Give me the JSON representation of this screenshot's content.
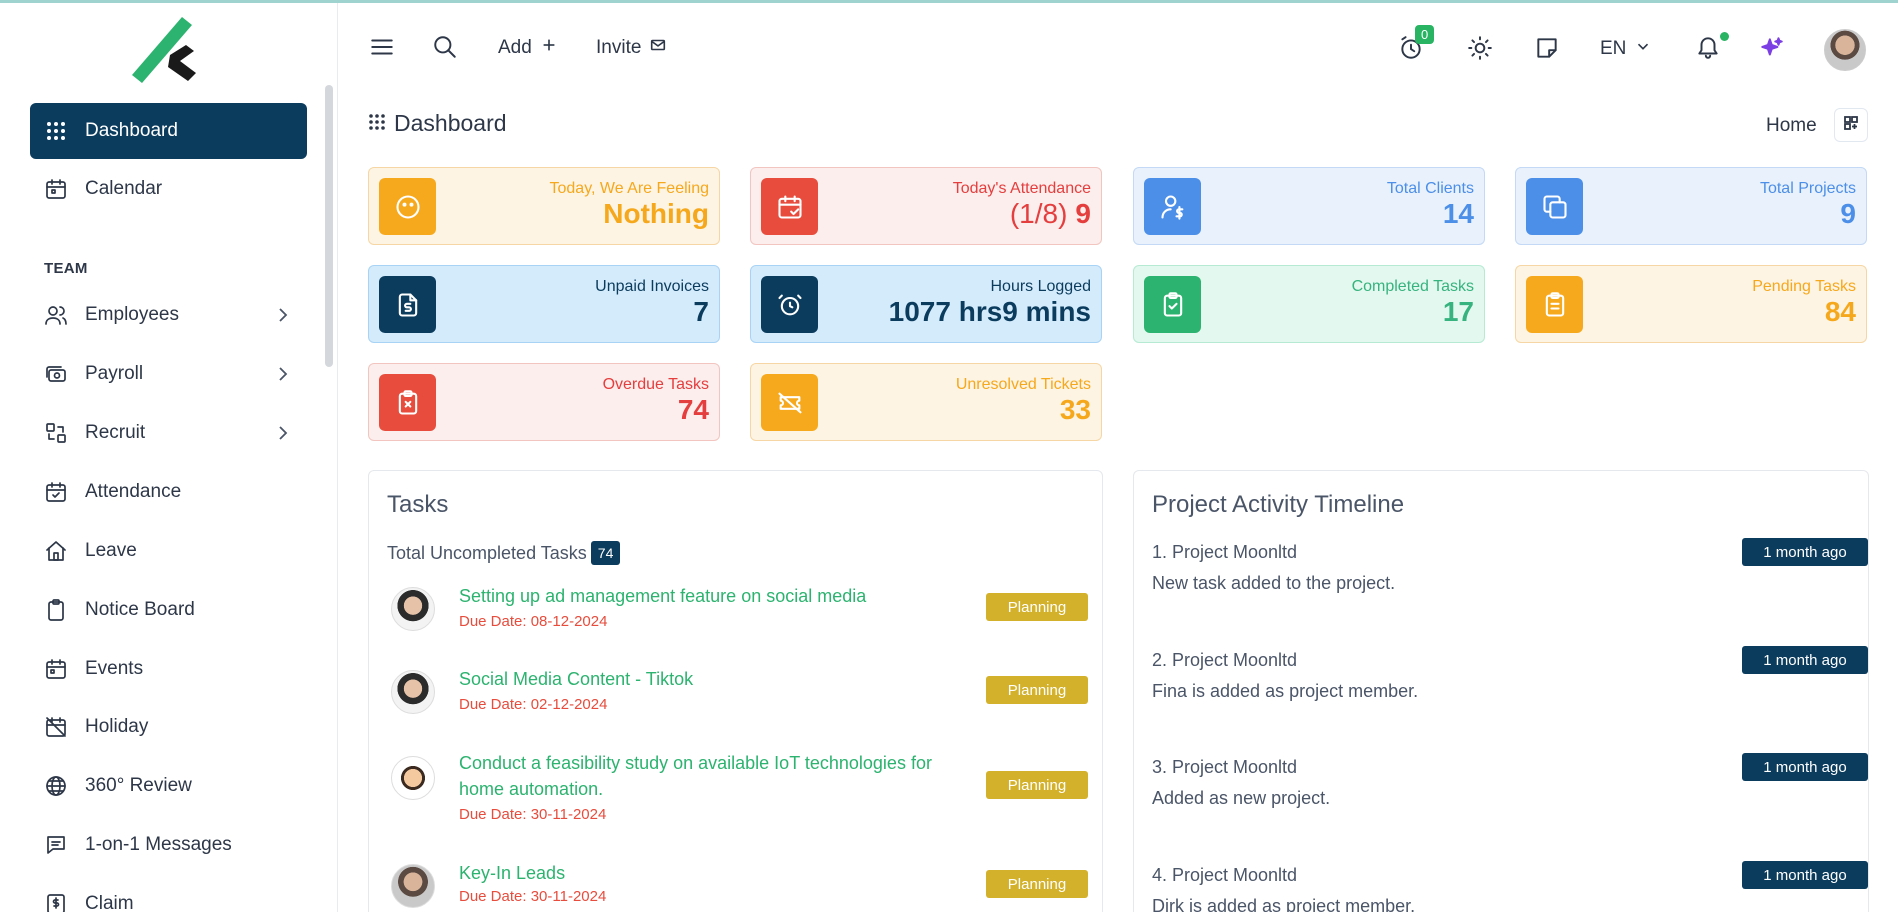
{
  "sidebar": {
    "items": [
      {
        "label": "Dashboard"
      },
      {
        "label": "Calendar"
      },
      {
        "label": "Employees"
      },
      {
        "label": "Payroll"
      },
      {
        "label": "Recruit"
      },
      {
        "label": "Attendance"
      },
      {
        "label": "Leave"
      },
      {
        "label": "Notice Board"
      },
      {
        "label": "Events"
      },
      {
        "label": "Holiday"
      },
      {
        "label": "360° Review"
      },
      {
        "label": "1-on-1 Messages"
      },
      {
        "label": "Claim"
      }
    ],
    "section_team": "TEAM"
  },
  "header": {
    "add_label": "Add",
    "invite_label": "Invite",
    "timer_count": "0",
    "language": "EN"
  },
  "page": {
    "title": "Dashboard",
    "breadcrumb": "Home"
  },
  "stats": [
    {
      "label": "Today, We Are Feeling",
      "value": "Nothing"
    },
    {
      "label": "Today's Attendance",
      "value_a": "(1/8)",
      "value_b": "9"
    },
    {
      "label": "Total Clients",
      "value": "14"
    },
    {
      "label": "Total Projects",
      "value": "9"
    },
    {
      "label": "Unpaid Invoices",
      "value": "7"
    },
    {
      "label": "Hours Logged",
      "value": "1077 hrs9 mins"
    },
    {
      "label": "Completed Tasks",
      "value": "17"
    },
    {
      "label": "Pending Tasks",
      "value": "84"
    },
    {
      "label": "Overdue Tasks",
      "value": "74"
    },
    {
      "label": "Unresolved Tickets",
      "value": "33"
    }
  ],
  "colors": {
    "primary": "#0b3c5d",
    "orange": "#f7a91d",
    "red": "#e74c3c",
    "blue": "#4c8fe8",
    "green": "#2cb36f",
    "planning": "#d4b12a"
  },
  "tasks": {
    "title": "Tasks",
    "total_label": "Total Uncompleted Tasks",
    "total_count": "74",
    "items": [
      {
        "name": "Setting up ad management feature on social media",
        "due": "Due Date: 08-12-2024",
        "status": "Planning"
      },
      {
        "name": "Social Media Content - Tiktok",
        "due": "Due Date: 02-12-2024",
        "status": "Planning"
      },
      {
        "name": "Conduct a feasibility study on available IoT technologies for home automation.",
        "due": "Due Date: 30-11-2024",
        "status": "Planning"
      },
      {
        "name": "Key-In Leads",
        "due": "Due Date: 30-11-2024",
        "status": "Planning"
      }
    ]
  },
  "timeline": {
    "title": "Project Activity Timeline",
    "items": [
      {
        "title": "1. Project Moonltd",
        "desc": "New task added to the project.",
        "ago": "1 month ago"
      },
      {
        "title": "2. Project Moonltd",
        "desc": "Fina is added as project member.",
        "ago": "1 month ago"
      },
      {
        "title": "3. Project Moonltd",
        "desc": "Added as new project.",
        "ago": "1 month ago"
      },
      {
        "title": "4. Project Moonltd",
        "desc": "Dirk is added as project member.",
        "ago": "1 month ago"
      }
    ]
  }
}
